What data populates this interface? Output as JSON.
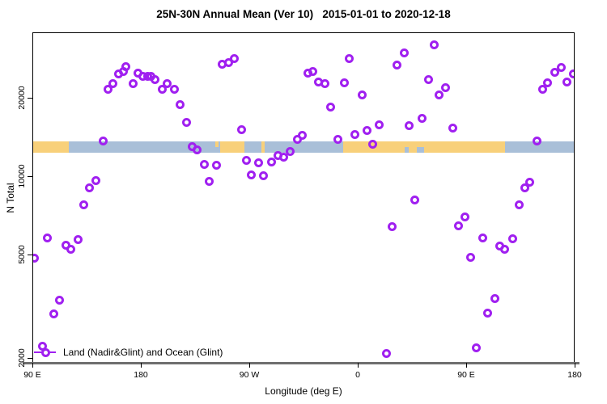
{
  "title": "25N-30N Annual Mean (Ver 10)   2015-01-01 to 2020-12-18",
  "x_axis": {
    "label": "Longitude (deg E)",
    "ticks": [
      {
        "lon": 90,
        "label": "90 E"
      },
      {
        "lon": 180,
        "label": "180"
      },
      {
        "lon": 270,
        "label": "90 W"
      },
      {
        "lon": 360,
        "label": "0"
      },
      {
        "lon": 450,
        "label": "90 E"
      },
      {
        "lon": 540,
        "label": "180"
      }
    ]
  },
  "y_axis": {
    "label": "N Total",
    "ticks": [
      {
        "value": 2000,
        "label": "2000"
      },
      {
        "value": 5000,
        "label": "5000"
      },
      {
        "value": 10000,
        "label": "10000"
      },
      {
        "value": 20000,
        "label": "20000"
      }
    ]
  },
  "legend": {
    "label": "Land (Nadir&Glint) and Ocean (Glint)"
  },
  "colors": {
    "point": "#A020F0",
    "land": "#F8D07A",
    "ocean": "#A9BFD8",
    "border": "#000000",
    "baseline": "#6E6E6E",
    "text": "#000000"
  },
  "map_band": {
    "land_segments": [
      {
        "from": 90,
        "to": 119.5,
        "half": "full"
      },
      {
        "from": 241,
        "to": 243.5,
        "half": "top"
      },
      {
        "from": 245,
        "to": 265.5,
        "half": "full"
      },
      {
        "from": 279.5,
        "to": 282,
        "half": "full"
      },
      {
        "from": 347,
        "to": 481.5,
        "half": "full"
      }
    ],
    "ocean_notches": [
      {
        "from": 398.5,
        "to": 401.5
      },
      {
        "from": 408.5,
        "to": 414.5
      }
    ]
  },
  "chart_data": {
    "type": "scatter",
    "title": "25N-30N Annual Mean (Ver 10)   2015-01-01 to 2020-12-18",
    "xlabel": "Longitude (deg E)",
    "ylabel": "N Total",
    "x_range": [
      90,
      540
    ],
    "x_tick_labels": [
      "90 E",
      "180",
      "90 W",
      "0",
      "90 E",
      "180"
    ],
    "y_scale": "log",
    "y_ticks": [
      2000,
      5000,
      10000,
      20000
    ],
    "y_range": [
      1900,
      36000
    ],
    "marker": "open-circle",
    "points": [
      [
        91.3,
        4870
      ],
      [
        98,
        2230
      ],
      [
        102,
        5810
      ],
      [
        107,
        2970
      ],
      [
        112,
        3370
      ],
      [
        117,
        5480
      ],
      [
        121,
        5280
      ],
      [
        127,
        5730
      ],
      [
        132,
        7800
      ],
      [
        137,
        9050
      ],
      [
        142,
        9650
      ],
      [
        148,
        13700
      ],
      [
        152,
        21700
      ],
      [
        156,
        22900
      ],
      [
        161,
        24800
      ],
      [
        165,
        25500
      ],
      [
        167,
        26500
      ],
      [
        173,
        22900
      ],
      [
        177,
        25000
      ],
      [
        181,
        24400
      ],
      [
        185,
        24400
      ],
      [
        188,
        24400
      ],
      [
        191,
        23700
      ],
      [
        197,
        21700
      ],
      [
        201,
        22800
      ],
      [
        207,
        21700
      ],
      [
        212,
        19000
      ],
      [
        217,
        16200
      ],
      [
        222,
        13100
      ],
      [
        226,
        12700
      ],
      [
        232,
        11200
      ],
      [
        236,
        9600
      ],
      [
        242,
        11100
      ],
      [
        247,
        27100
      ],
      [
        252,
        27500
      ],
      [
        257,
        28500
      ],
      [
        263,
        15200
      ],
      [
        267,
        11600
      ],
      [
        271,
        10200
      ],
      [
        277,
        11300
      ],
      [
        281,
        10100
      ],
      [
        288,
        11400
      ],
      [
        293,
        12100
      ],
      [
        298,
        11900
      ],
      [
        303,
        12500
      ],
      [
        309,
        13900
      ],
      [
        313,
        14500
      ],
      [
        318,
        25000
      ],
      [
        322,
        25400
      ],
      [
        327,
        23200
      ],
      [
        332,
        22800
      ],
      [
        337,
        18600
      ],
      [
        343,
        13900
      ],
      [
        348,
        23000
      ],
      [
        352,
        28600
      ],
      [
        357,
        14600
      ],
      [
        363,
        20600
      ],
      [
        367,
        15100
      ],
      [
        372,
        13400
      ],
      [
        377,
        15900
      ],
      [
        383,
        2100
      ],
      [
        388,
        6420
      ],
      [
        392,
        26900
      ],
      [
        398,
        29900
      ],
      [
        402,
        15800
      ],
      [
        407,
        8180
      ],
      [
        413,
        16800
      ],
      [
        418,
        23700
      ],
      [
        423,
        32300
      ],
      [
        427,
        20600
      ],
      [
        432,
        22100
      ],
      [
        438,
        15400
      ],
      [
        443,
        6470
      ],
      [
        448,
        7000
      ],
      [
        453,
        4900
      ],
      [
        458,
        2200
      ],
      [
        463,
        5810
      ],
      [
        467,
        2990
      ],
      [
        473,
        3400
      ],
      [
        477,
        5440
      ],
      [
        481,
        5270
      ],
      [
        488,
        5770
      ],
      [
        493,
        7800
      ],
      [
        498,
        9100
      ],
      [
        502,
        9550
      ],
      [
        508,
        13700
      ],
      [
        513,
        21800
      ],
      [
        517,
        23000
      ],
      [
        523,
        25200
      ],
      [
        528,
        26300
      ],
      [
        533,
        23100
      ],
      [
        538,
        24800
      ]
    ]
  }
}
